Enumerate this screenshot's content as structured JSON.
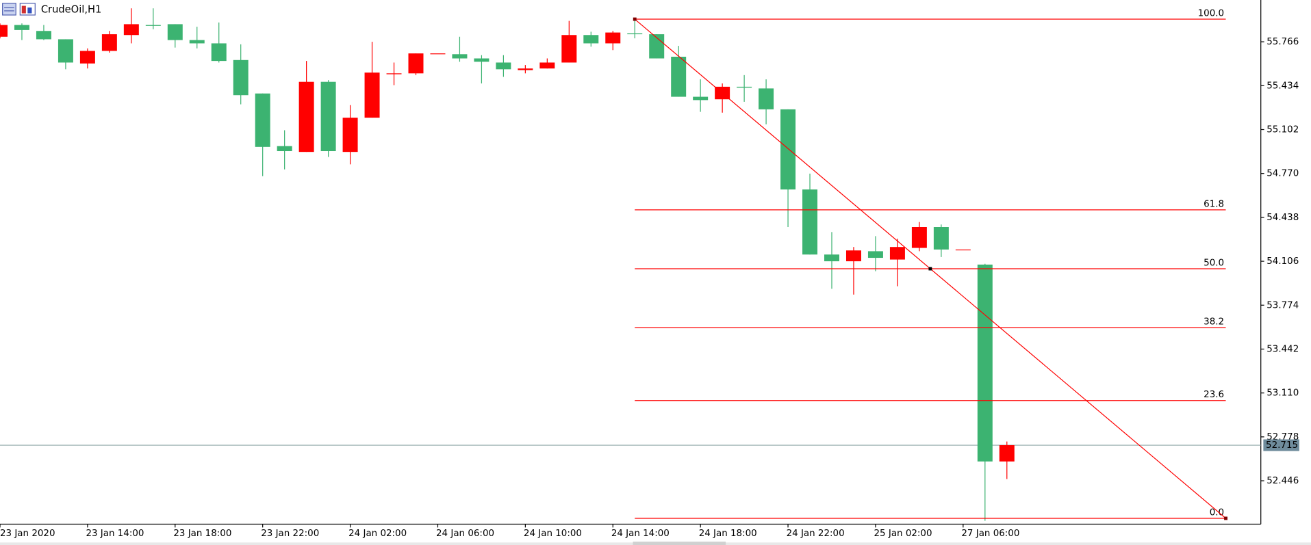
{
  "symbol_label": "CrudeOil,H1",
  "chart_data": {
    "type": "candlestick",
    "categories": [
      "23 Jan 2020",
      null,
      null,
      null,
      "23 Jan 14:00",
      null,
      null,
      null,
      "23 Jan 18:00",
      null,
      null,
      null,
      "23 Jan 22:00",
      null,
      null,
      null,
      "24 Jan 02:00",
      null,
      null,
      null,
      "24 Jan 06:00",
      null,
      null,
      null,
      "24 Jan 10:00",
      null,
      null,
      null,
      "24 Jan 14:00",
      null,
      null,
      null,
      "24 Jan 18:00",
      null,
      null,
      null,
      "24 Jan 22:00",
      null,
      null,
      null,
      "25 Jan 02:00",
      null,
      null,
      null,
      "27 Jan 06:00",
      null,
      null
    ],
    "open": [
      55.804,
      55.893,
      55.848,
      55.785,
      55.602,
      55.697,
      55.817,
      55.893,
      55.899,
      55.779,
      55.754,
      55.628,
      55.375,
      54.977,
      54.933,
      55.463,
      54.933,
      55.192,
      55.527,
      55.527,
      55.678,
      55.672,
      55.64,
      55.609,
      55.552,
      55.564,
      55.609,
      55.817,
      55.754,
      55.83,
      55.823,
      55.653,
      55.35,
      55.331,
      55.426,
      55.413,
      55.255,
      54.649,
      54.157,
      54.106,
      54.182,
      54.119,
      54.207,
      54.365,
      54.195,
      54.081,
      52.592
    ],
    "high": [
      55.905,
      55.905,
      55.893,
      55.785,
      55.716,
      55.848,
      56.019,
      56.019,
      55.899,
      55.88,
      55.912,
      55.747,
      55.375,
      55.097,
      55.621,
      55.476,
      55.287,
      55.766,
      55.609,
      55.678,
      55.678,
      55.804,
      55.665,
      55.665,
      55.59,
      55.64,
      55.924,
      55.842,
      55.848,
      55.937,
      55.823,
      55.735,
      55.482,
      55.451,
      55.514,
      55.482,
      55.255,
      54.769,
      54.327,
      54.214,
      54.296,
      54.277,
      54.403,
      54.384,
      54.195,
      54.087,
      52.743
    ],
    "low": [
      55.792,
      55.779,
      55.779,
      55.558,
      55.564,
      55.684,
      55.754,
      55.861,
      55.722,
      55.716,
      55.609,
      55.293,
      54.75,
      54.801,
      54.933,
      54.895,
      54.839,
      55.192,
      55.438,
      55.514,
      55.678,
      55.615,
      55.451,
      55.501,
      55.527,
      55.564,
      55.609,
      55.729,
      55.703,
      55.792,
      55.64,
      55.35,
      55.236,
      55.23,
      55.312,
      55.142,
      54.365,
      54.157,
      53.898,
      53.854,
      54.031,
      53.917,
      54.182,
      54.138,
      54.195,
      52.143,
      52.459
    ],
    "close": [
      55.893,
      55.855,
      55.785,
      55.609,
      55.697,
      55.823,
      55.899,
      55.886,
      55.779,
      55.754,
      55.621,
      55.362,
      54.971,
      54.939,
      55.463,
      54.939,
      55.192,
      55.533,
      55.527,
      55.678,
      55.678,
      55.64,
      55.615,
      55.558,
      55.564,
      55.609,
      55.817,
      55.754,
      55.836,
      55.823,
      55.64,
      55.35,
      55.325,
      55.426,
      55.419,
      55.255,
      54.649,
      54.157,
      54.106,
      54.188,
      54.132,
      54.214,
      54.365,
      54.195,
      54.195,
      52.592,
      52.715
    ],
    "up_color": "#ff0000",
    "down_color": "#3cb371",
    "ylim": [
      52.118,
      56.082
    ],
    "yticks": [
      55.766,
      55.434,
      55.102,
      {
        "value": 54.77,
        "label": "54.770"
      },
      54.438,
      54.106,
      53.774,
      53.442,
      {
        "value": 53.11,
        "label": "53.110"
      },
      52.778,
      52.446
    ],
    "last_price": 52.715,
    "fibonacci": {
      "high": 55.937,
      "low": 52.162,
      "color": "#ff0000",
      "levels": [
        {
          "value": 100,
          "label": "100.0"
        },
        {
          "value": 61.8,
          "label": "61.8"
        },
        {
          "value": 50,
          "label": "50.0"
        },
        {
          "value": 38.2,
          "label": "38.2"
        },
        {
          "value": 23.6,
          "label": "23.6"
        },
        {
          "value": 0,
          "label": "0.0"
        }
      ]
    }
  }
}
